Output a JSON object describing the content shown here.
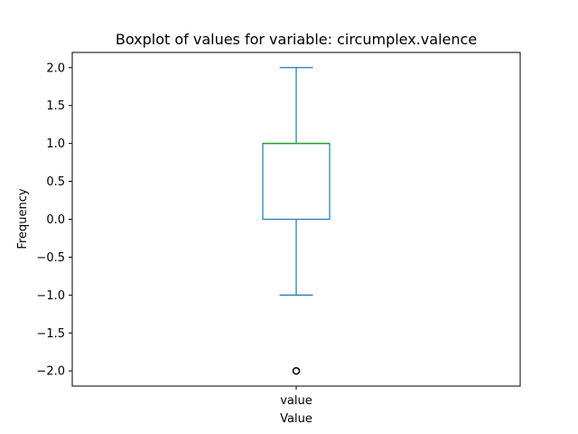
{
  "chart_data": {
    "type": "boxplot",
    "title": "Boxplot of values for variable: circumplex.valence",
    "xlabel": "Value",
    "ylabel": "Frequency",
    "categories": [
      "value"
    ],
    "ylim": [
      -2.2,
      2.2
    ],
    "yticks": [
      -2.0,
      -1.5,
      -1.0,
      -0.5,
      0.0,
      0.5,
      1.0,
      1.5,
      2.0
    ],
    "ytick_labels": [
      "−2.0",
      "−1.5",
      "−1.0",
      "−0.5",
      "0.0",
      "0.5",
      "1.0",
      "1.5",
      "2.0"
    ],
    "boxes": [
      {
        "category": "value",
        "whisker_low": -1.0,
        "q1": 0.0,
        "median": 1.0,
        "q3": 1.0,
        "whisker_high": 2.0,
        "outliers": [
          -2.0
        ]
      }
    ],
    "colors": {
      "box": "#1f77b4",
      "median": "#2ca02c",
      "outlier": "#000000"
    },
    "grid": false
  }
}
